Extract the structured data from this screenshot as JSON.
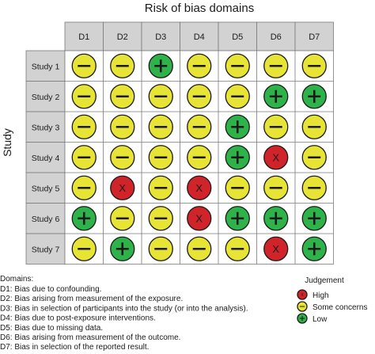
{
  "chart_data": {
    "type": "table",
    "title": "Risk of bias domains",
    "row_axis_label": "Study",
    "domains": [
      "D1",
      "D2",
      "D3",
      "D4",
      "D5",
      "D6",
      "D7"
    ],
    "studies": [
      "Study 1",
      "Study 2",
      "Study 3",
      "Study 4",
      "Study 5",
      "Study 6",
      "Study 7"
    ],
    "judgements": [
      [
        "some",
        "some",
        "low",
        "some",
        "some",
        "some",
        "some"
      ],
      [
        "some",
        "some",
        "some",
        "some",
        "some",
        "low",
        "low"
      ],
      [
        "some",
        "some",
        "some",
        "some",
        "low",
        "some",
        "some"
      ],
      [
        "some",
        "some",
        "some",
        "some",
        "low",
        "high",
        "some"
      ],
      [
        "some",
        "high",
        "some",
        "high",
        "some",
        "some",
        "some"
      ],
      [
        "low",
        "some",
        "some",
        "high",
        "low",
        "low",
        "low"
      ],
      [
        "some",
        "low",
        "some",
        "some",
        "some",
        "high",
        "low"
      ]
    ],
    "symbols": {
      "high": "X",
      "some": "−",
      "low": "+"
    },
    "colors": {
      "high": "#d1232a",
      "some": "#e8e435",
      "low": "#2eb34a",
      "header_fill": "#d2d2d2",
      "grid": "#7a7a7a"
    },
    "domains_legend_title": "Domains:",
    "domain_descriptions": [
      "D1: Bias due to confounding.",
      "D2: Bias arising from measurement of the exposure.",
      "D3: Bias in selection of participants into the study (or into the analysis).",
      "D4: Bias due to post-exposure interventions.",
      "D5: Bias due to missing data.",
      "D6: Bias arising from measurement of the outcome.",
      "D7: Bias in selection of the reported result."
    ],
    "judgement_legend": {
      "title": "Judgement",
      "items": [
        {
          "key": "high",
          "label": "High"
        },
        {
          "key": "some",
          "label": "Some concerns"
        },
        {
          "key": "low",
          "label": "Low"
        }
      ]
    }
  }
}
